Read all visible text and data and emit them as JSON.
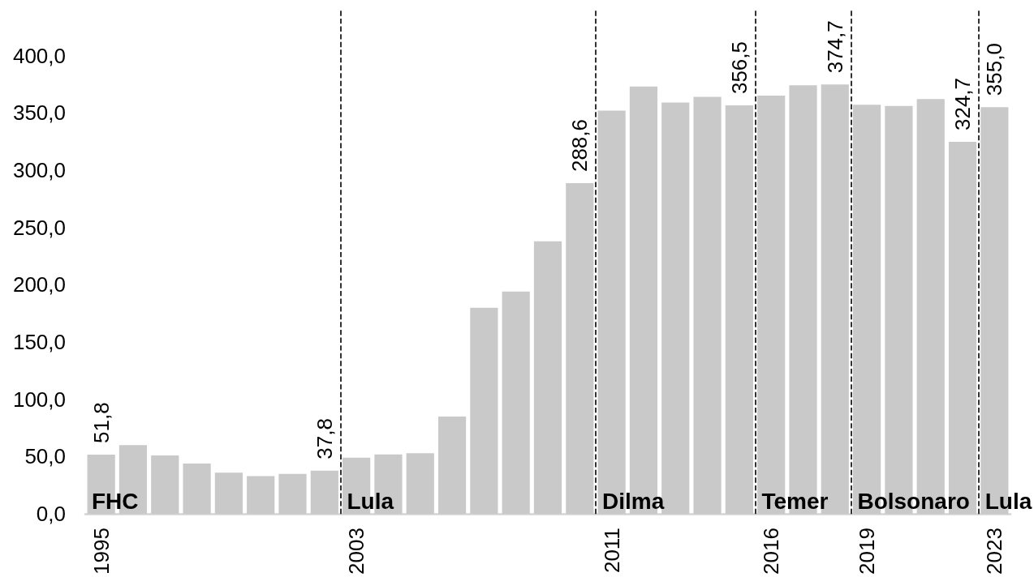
{
  "chart_data": {
    "type": "bar",
    "x": [
      1995,
      1996,
      1997,
      1998,
      1999,
      2000,
      2001,
      2002,
      2003,
      2004,
      2005,
      2006,
      2007,
      2008,
      2009,
      2010,
      2011,
      2012,
      2013,
      2014,
      2015,
      2016,
      2017,
      2018,
      2019,
      2020,
      2021,
      2022,
      2023
    ],
    "values": [
      51.8,
      60,
      51,
      44,
      36,
      33,
      35,
      37.8,
      49,
      52,
      53,
      85,
      180,
      194,
      238,
      288.6,
      352,
      373,
      359,
      364,
      356.5,
      365,
      374,
      374.7,
      357,
      356,
      362,
      324.7,
      355.0
    ],
    "value_labels": [
      "51,8",
      null,
      null,
      null,
      null,
      null,
      null,
      "37,8",
      null,
      null,
      null,
      null,
      null,
      null,
      null,
      "288,6",
      null,
      null,
      null,
      null,
      "356,5",
      null,
      null,
      "374,7",
      null,
      null,
      null,
      "324,7",
      "355,0"
    ],
    "color": "#c9c9c9",
    "xlim": [
      1994.5,
      2023.5
    ],
    "xticks": [
      1995,
      2003,
      2011,
      2016,
      2019,
      2023
    ],
    "ylim": [
      0,
      440
    ],
    "yticks": [
      {
        "value": 0,
        "label": "0,0"
      },
      {
        "value": 50,
        "label": "50,0"
      },
      {
        "value": 100,
        "label": "100,0"
      },
      {
        "value": 150,
        "label": "150,0"
      },
      {
        "value": 200,
        "label": "200,0"
      },
      {
        "value": 250,
        "label": "250,0"
      },
      {
        "value": 300,
        "label": "300,0"
      },
      {
        "value": 350,
        "label": "350,0"
      },
      {
        "value": 400,
        "label": "400,0"
      }
    ],
    "grid": false,
    "ref_lines": [
      {
        "axis": "x",
        "value": 2002.5,
        "label": "Lula",
        "color": "#000000",
        "line_style": "dashed"
      },
      {
        "axis": "x",
        "value": 2010.5,
        "label": "Dilma",
        "color": "#000000",
        "line_style": "dashed"
      },
      {
        "axis": "x",
        "value": 2015.5,
        "label": "Temer",
        "color": "#000000",
        "line_style": "dashed"
      },
      {
        "axis": "x",
        "value": 2018.5,
        "label": "Bolsonaro",
        "color": "#000000",
        "line_style": "dashed"
      },
      {
        "axis": "x",
        "value": 2022.5,
        "label": "Lula",
        "color": "#000000",
        "line_style": "dashed"
      }
    ],
    "annotations": [
      {
        "text": "FHC",
        "x": 1994.5,
        "y": 0
      }
    ]
  }
}
